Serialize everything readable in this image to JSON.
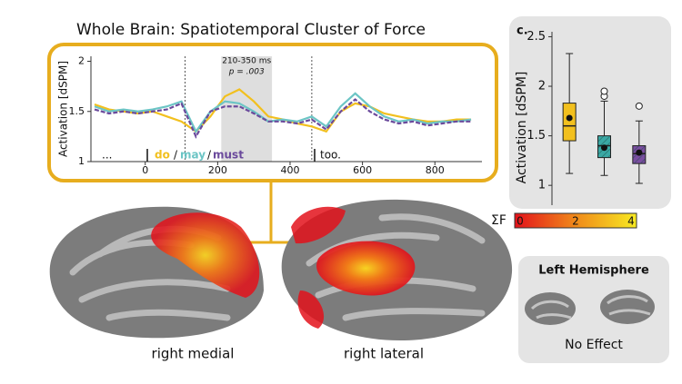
{
  "chart_data": [
    {
      "type": "line",
      "title": "Whole Brain: Spatiotemporal Cluster of Force",
      "y_label": "Activation [dSPM]",
      "annotation": "210-350 ms",
      "p_label": "p = .003",
      "highlight": [
        210,
        350
      ],
      "vlines": [
        110,
        460
      ],
      "words": [
        "...",
        "do",
        "/",
        "may",
        "/",
        "must",
        "too."
      ],
      "x": [
        -140,
        -100,
        -60,
        -20,
        20,
        60,
        100,
        140,
        180,
        220,
        260,
        300,
        340,
        380,
        420,
        460,
        500,
        540,
        580,
        620,
        660,
        700,
        740,
        780,
        820,
        860,
        900
      ],
      "series": [
        {
          "name": "do",
          "color": "#f2c01e",
          "values": [
            1.57,
            1.52,
            1.5,
            1.48,
            1.5,
            1.45,
            1.4,
            1.3,
            1.45,
            1.65,
            1.72,
            1.6,
            1.45,
            1.42,
            1.38,
            1.35,
            1.3,
            1.5,
            1.58,
            1.55,
            1.48,
            1.45,
            1.42,
            1.4,
            1.4,
            1.42,
            1.42
          ]
        },
        {
          "name": "may",
          "color": "#6cc5c5",
          "values": [
            1.55,
            1.5,
            1.52,
            1.5,
            1.52,
            1.55,
            1.6,
            1.3,
            1.5,
            1.6,
            1.58,
            1.5,
            1.4,
            1.42,
            1.4,
            1.45,
            1.35,
            1.55,
            1.68,
            1.55,
            1.45,
            1.4,
            1.42,
            1.38,
            1.4,
            1.4,
            1.42
          ]
        },
        {
          "name": "must",
          "color": "#6b4a9c",
          "values": [
            1.52,
            1.48,
            1.5,
            1.48,
            1.5,
            1.52,
            1.58,
            1.25,
            1.5,
            1.55,
            1.55,
            1.48,
            1.4,
            1.4,
            1.38,
            1.42,
            1.32,
            1.5,
            1.62,
            1.5,
            1.42,
            1.38,
            1.4,
            1.36,
            1.38,
            1.4,
            1.4
          ]
        }
      ],
      "xlim": [
        -150,
        930
      ],
      "xticks": [
        0,
        200,
        400,
        600,
        800
      ],
      "ylim": [
        1,
        2.05
      ],
      "yticks": [
        1,
        1.5,
        2
      ]
    },
    {
      "type": "box",
      "title": "c.",
      "y_label": "Activation [dSPM]",
      "ylim": [
        0.8,
        2.55
      ],
      "yticks": [
        1,
        1.5,
        2,
        2.5
      ],
      "series": [
        {
          "color": "#f2c01e",
          "whisker_low": 1.12,
          "q1": 1.45,
          "median": 1.6,
          "q3": 1.83,
          "whisker_high": 2.33,
          "mean": 1.68,
          "outliers": []
        },
        {
          "color": "#3aa8a4",
          "whisker_low": 1.1,
          "q1": 1.28,
          "median": 1.4,
          "q3": 1.5,
          "whisker_high": 1.85,
          "mean": 1.38,
          "outliers": [
            1.9,
            1.95
          ]
        },
        {
          "color": "#7a4ea0",
          "whisker_low": 1.02,
          "q1": 1.22,
          "median": 1.32,
          "q3": 1.4,
          "whisker_high": 1.65,
          "mean": 1.33,
          "outliers": [
            1.8
          ]
        }
      ]
    },
    {
      "type": "colorbar",
      "label": "ΣF",
      "colors": [
        "#e3121b",
        "#f08a1a",
        "#f7ea22"
      ],
      "lim": [
        0,
        4
      ],
      "ticks": [
        0,
        2,
        4
      ]
    }
  ],
  "labels": {
    "medial": "right medial",
    "lateral": "right lateral",
    "left_title": "Left Hemisphere",
    "left_effect": "No Effect"
  }
}
